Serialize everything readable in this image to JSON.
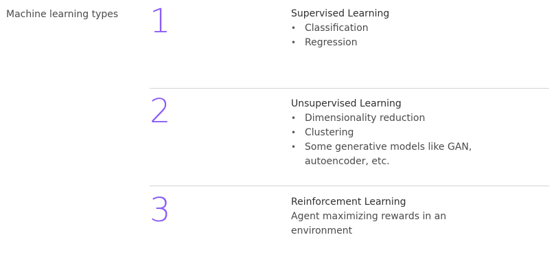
{
  "sidebar": {
    "title": "Machine learning types"
  },
  "colors": {
    "accent_number": "#8a5cf6",
    "divider": "#d4d4d4",
    "text": "#4a4a4a"
  },
  "types": [
    {
      "number": "1",
      "title": "Supervised Learning",
      "items": [
        "Classification",
        "Regression"
      ]
    },
    {
      "number": "2",
      "title": "Unsupervised Learning",
      "items": [
        "Dimensionality reduction",
        "Clustering",
        "Some generative models like GAN, autoencoder, etc."
      ]
    },
    {
      "number": "3",
      "title": "Reinforcement Learning",
      "description": "Agent maximizing rewards in an environment"
    }
  ]
}
